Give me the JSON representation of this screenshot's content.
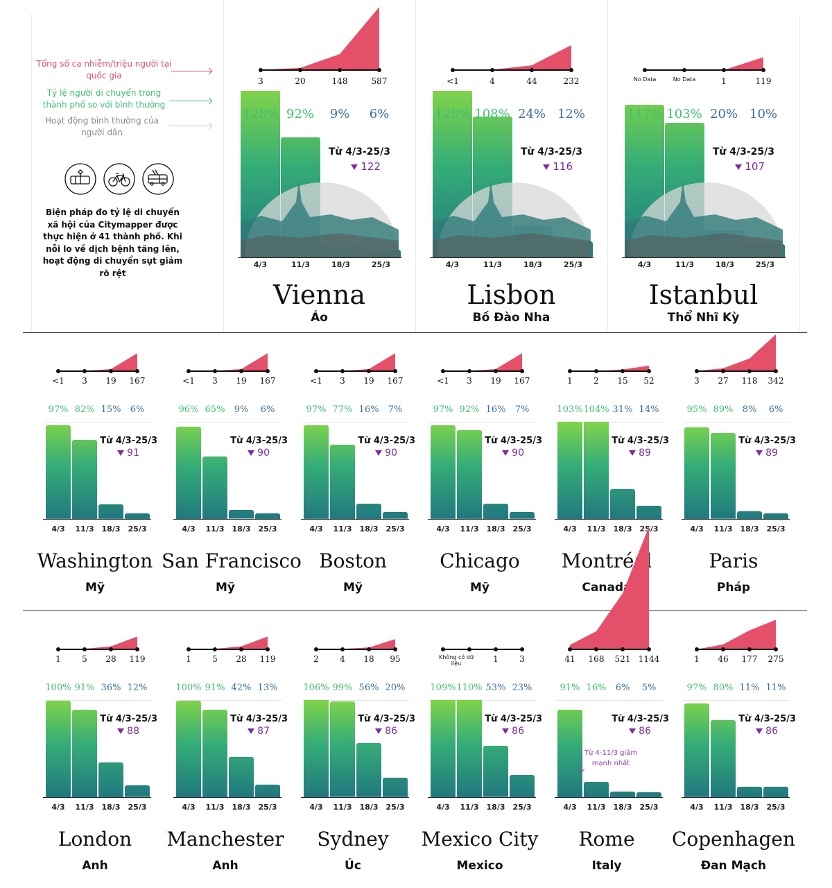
{
  "legend": {
    "cases": "Tổng số ca nhiễm/triệu người tại quốc gia",
    "mobility": "Tỷ lệ người di chuyển trong thành phố so với bình thường",
    "normal": "Hoạt động bình thường của người dân",
    "icons": [
      "tram-icon",
      "bicycle-icon",
      "bus-icon"
    ],
    "intro": "Biện pháp đo tỷ lệ di chuyển xã hội của Citymapper được thực hiện ở 41 thành phố. Khi nỗi lo về dịch bệnh tăng lên, hoạt động di chuyển sụt giảm rõ rệt"
  },
  "colors": {
    "cases": "#e4506a",
    "mobility_high": "#3fbf6f",
    "mobility_low": "#3b6fa0",
    "drop": "#7b2fa0",
    "bar_top": "#80d449",
    "bar_bottom": "#21787f"
  },
  "dates": [
    "4/3",
    "11/3",
    "18/3",
    "25/3"
  ],
  "period_label": "Từ 4/3-25/3",
  "cities": [
    {
      "name": "Vienna",
      "country": "Áo",
      "cases": [
        "3",
        "20",
        "148",
        "587"
      ],
      "mobility": [
        128,
        92,
        9,
        6
      ],
      "mobility_labels": [
        "128%",
        "92%",
        "9%",
        "6%"
      ],
      "drop": "122"
    },
    {
      "name": "Lisbon",
      "country": "Bồ Đào Nha",
      "cases": [
        "<1",
        "4",
        "44",
        "232"
      ],
      "mobility": [
        128,
        108,
        24,
        12
      ],
      "mobility_labels": [
        "128%",
        "108%",
        "24%",
        "12%"
      ],
      "drop": "116"
    },
    {
      "name": "Istanbul",
      "country": "Thổ Nhĩ Kỳ",
      "cases": [
        "No Data",
        "No Data",
        "1",
        "119"
      ],
      "mobility": [
        117,
        103,
        20,
        10
      ],
      "mobility_labels": [
        "117%",
        "103%",
        "20%",
        "10%"
      ],
      "drop": "107"
    },
    {
      "name": "Washington",
      "country": "Mỹ",
      "cases": [
        "<1",
        "3",
        "19",
        "167"
      ],
      "mobility": [
        97,
        82,
        15,
        6
      ],
      "mobility_labels": [
        "97%",
        "82%",
        "15%",
        "6%"
      ],
      "drop": "91"
    },
    {
      "name": "San Francisco",
      "country": "Mỹ",
      "cases": [
        "<1",
        "3",
        "19",
        "167"
      ],
      "mobility": [
        96,
        65,
        9,
        6
      ],
      "mobility_labels": [
        "96%",
        "65%",
        "9%",
        "6%"
      ],
      "drop": "90"
    },
    {
      "name": "Boston",
      "country": "Mỹ",
      "cases": [
        "<1",
        "3",
        "19",
        "167"
      ],
      "mobility": [
        97,
        77,
        16,
        7
      ],
      "mobility_labels": [
        "97%",
        "77%",
        "16%",
        "7%"
      ],
      "drop": "90"
    },
    {
      "name": "Chicago",
      "country": "Mỹ",
      "cases": [
        "<1",
        "3",
        "19",
        "167"
      ],
      "mobility": [
        97,
        92,
        16,
        7
      ],
      "mobility_labels": [
        "97%",
        "92%",
        "16%",
        "7%"
      ],
      "drop": "90"
    },
    {
      "name": "Montréal",
      "country": "Canada",
      "cases": [
        "1",
        "2",
        "15",
        "52"
      ],
      "mobility": [
        103,
        104,
        31,
        14
      ],
      "mobility_labels": [
        "103%",
        "104%",
        "31%",
        "14%"
      ],
      "drop": "89"
    },
    {
      "name": "Paris",
      "country": "Pháp",
      "cases": [
        "3",
        "27",
        "118",
        "342"
      ],
      "mobility": [
        95,
        89,
        8,
        6
      ],
      "mobility_labels": [
        "95%",
        "89%",
        "8%",
        "6%"
      ],
      "drop": "89"
    },
    {
      "name": "London",
      "country": "Anh",
      "cases": [
        "1",
        "5",
        "28",
        "119"
      ],
      "mobility": [
        100,
        91,
        36,
        12
      ],
      "mobility_labels": [
        "100%",
        "91%",
        "36%",
        "12%"
      ],
      "drop": "88"
    },
    {
      "name": "Manchester",
      "country": "Anh",
      "cases": [
        "1",
        "5",
        "28",
        "119"
      ],
      "mobility": [
        100,
        91,
        42,
        13
      ],
      "mobility_labels": [
        "100%",
        "91%",
        "42%",
        "13%"
      ],
      "drop": "87"
    },
    {
      "name": "Sydney",
      "country": "Úc",
      "cases": [
        "2",
        "4",
        "18",
        "95"
      ],
      "mobility": [
        106,
        99,
        56,
        20
      ],
      "mobility_labels": [
        "106%",
        "99%",
        "56%",
        "20%"
      ],
      "drop": "86"
    },
    {
      "name": "Mexico City",
      "country": "Mexico",
      "cases": [
        null,
        null,
        "1",
        "3"
      ],
      "cases_note": "Không có dữ liệu",
      "mobility": [
        109,
        110,
        53,
        23
      ],
      "mobility_labels": [
        "109%",
        "110%",
        "53%",
        "23%"
      ],
      "drop": "86"
    },
    {
      "name": "Rome",
      "country": "Italy",
      "cases": [
        "41",
        "168",
        "521",
        "1144"
      ],
      "mobility": [
        91,
        16,
        6,
        5
      ],
      "mobility_labels": [
        "91%",
        "16%",
        "6%",
        "5%"
      ],
      "drop": "86",
      "note": "Từ 4-11/3 giảm mạnh nhất"
    },
    {
      "name": "Copenhagen",
      "country": "Đan Mạch",
      "cases": [
        "1",
        "46",
        "177",
        "275"
      ],
      "mobility": [
        97,
        80,
        11,
        11
      ],
      "mobility_labels": [
        "97%",
        "80%",
        "11%",
        "11%"
      ],
      "drop": "86"
    }
  ]
}
